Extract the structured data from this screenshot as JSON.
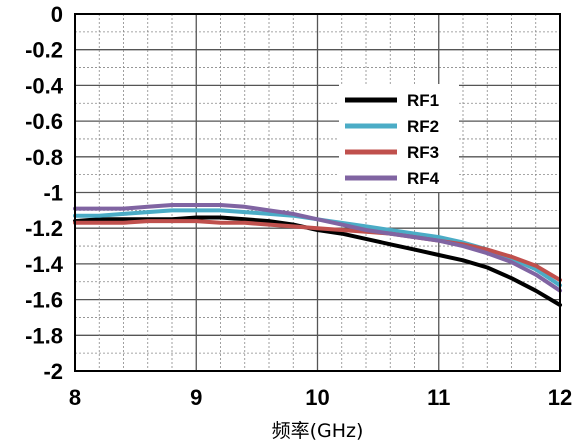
{
  "chart_data": {
    "type": "line",
    "title": "",
    "xlabel": "频率(GHz)",
    "ylabel": "",
    "xlim": [
      8,
      12
    ],
    "ylim": [
      -2,
      0
    ],
    "x_ticks": [
      "8",
      "9",
      "10",
      "11",
      "12"
    ],
    "y_ticks": [
      "0",
      "-0.2",
      "-0.4",
      "-0.6",
      "-0.8",
      "-1",
      "-1.2",
      "-1.4",
      "-1.6",
      "-1.8",
      "-2"
    ],
    "grid": true,
    "legend_position": "center-right",
    "series": [
      {
        "name": "RF1",
        "color": "#000000",
        "x": [
          8.0,
          8.2,
          8.4,
          8.6,
          8.8,
          9.0,
          9.2,
          9.4,
          9.6,
          9.8,
          10.0,
          10.2,
          10.4,
          10.6,
          10.8,
          11.0,
          11.2,
          11.4,
          11.6,
          11.8,
          12.0
        ],
        "y": [
          -1.16,
          -1.15,
          -1.15,
          -1.15,
          -1.15,
          -1.14,
          -1.14,
          -1.15,
          -1.16,
          -1.18,
          -1.21,
          -1.23,
          -1.26,
          -1.29,
          -1.32,
          -1.35,
          -1.38,
          -1.42,
          -1.48,
          -1.55,
          -1.63
        ]
      },
      {
        "name": "RF2",
        "color": "#4bacc6",
        "x": [
          8.0,
          8.2,
          8.4,
          8.6,
          8.8,
          9.0,
          9.2,
          9.4,
          9.6,
          9.8,
          10.0,
          10.2,
          10.4,
          10.6,
          10.8,
          11.0,
          11.2,
          11.4,
          11.6,
          11.8,
          12.0
        ],
        "y": [
          -1.13,
          -1.13,
          -1.12,
          -1.11,
          -1.1,
          -1.1,
          -1.1,
          -1.11,
          -1.12,
          -1.13,
          -1.15,
          -1.17,
          -1.19,
          -1.21,
          -1.23,
          -1.25,
          -1.28,
          -1.32,
          -1.37,
          -1.43,
          -1.52
        ]
      },
      {
        "name": "RF3",
        "color": "#c0504d",
        "x": [
          8.0,
          8.2,
          8.4,
          8.6,
          8.8,
          9.0,
          9.2,
          9.4,
          9.6,
          9.8,
          10.0,
          10.2,
          10.4,
          10.6,
          10.8,
          11.0,
          11.2,
          11.4,
          11.6,
          11.8,
          12.0
        ],
        "y": [
          -1.17,
          -1.17,
          -1.17,
          -1.16,
          -1.16,
          -1.16,
          -1.17,
          -1.17,
          -1.18,
          -1.19,
          -1.2,
          -1.21,
          -1.22,
          -1.23,
          -1.25,
          -1.27,
          -1.29,
          -1.32,
          -1.36,
          -1.41,
          -1.49
        ]
      },
      {
        "name": "RF4",
        "color": "#8064a2",
        "x": [
          8.0,
          8.2,
          8.4,
          8.6,
          8.8,
          9.0,
          9.2,
          9.4,
          9.6,
          9.8,
          10.0,
          10.2,
          10.4,
          10.6,
          10.8,
          11.0,
          11.2,
          11.4,
          11.6,
          11.8,
          12.0
        ],
        "y": [
          -1.09,
          -1.09,
          -1.09,
          -1.08,
          -1.07,
          -1.07,
          -1.07,
          -1.08,
          -1.1,
          -1.12,
          -1.15,
          -1.18,
          -1.21,
          -1.23,
          -1.25,
          -1.27,
          -1.3,
          -1.34,
          -1.39,
          -1.46,
          -1.55
        ]
      }
    ]
  }
}
